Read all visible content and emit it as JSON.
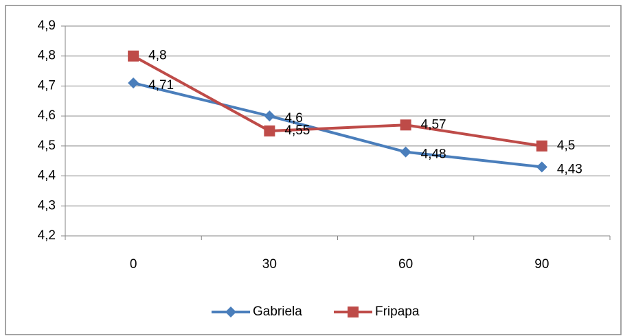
{
  "chart_data": {
    "type": "line",
    "categories": [
      "0",
      "30",
      "60",
      "90"
    ],
    "series": [
      {
        "name": "Gabriela",
        "color": "#4a7ebb",
        "marker": "diamond",
        "values": [
          4.71,
          4.6,
          4.48,
          4.43
        ],
        "value_labels": [
          "4,71",
          "4,6",
          "4,48",
          "4,43"
        ]
      },
      {
        "name": "Fripapa",
        "color": "#be4b48",
        "marker": "square",
        "values": [
          4.8,
          4.55,
          4.57,
          4.5
        ],
        "value_labels": [
          "4,8",
          "4,55",
          "4,57",
          "4,5"
        ]
      }
    ],
    "ylim": [
      4.2,
      4.9
    ],
    "yticks": [
      {
        "value": 4.2,
        "label": "4,2"
      },
      {
        "value": 4.3,
        "label": "4,3"
      },
      {
        "value": 4.4,
        "label": "4,4"
      },
      {
        "value": 4.5,
        "label": "4,5"
      },
      {
        "value": 4.6,
        "label": "4,6"
      },
      {
        "value": 4.7,
        "label": "4,7"
      },
      {
        "value": 4.8,
        "label": "4,8"
      },
      {
        "value": 4.9,
        "label": "4,9"
      }
    ],
    "grid": true,
    "legend": "bottom"
  }
}
